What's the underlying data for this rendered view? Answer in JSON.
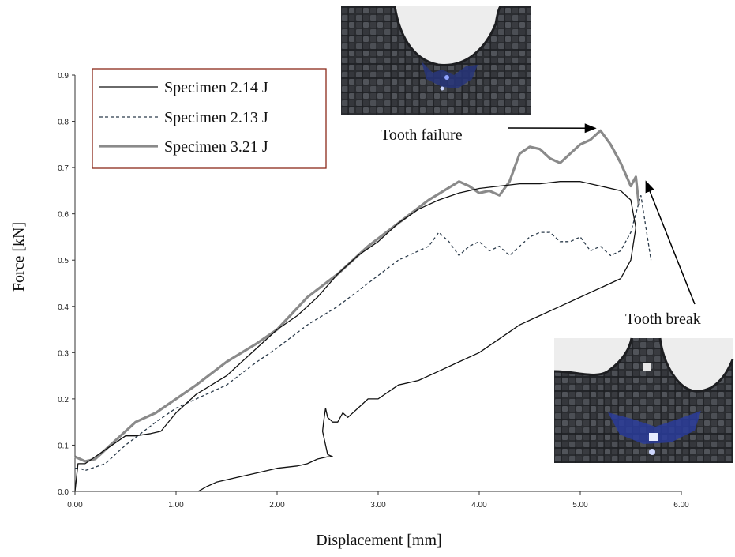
{
  "chart_data": {
    "type": "line",
    "xlabel": "Displacement [mm]",
    "ylabel": "Force [kN]",
    "xlim": [
      0,
      6
    ],
    "ylim": [
      0,
      0.9
    ],
    "x_ticks": [
      "0.00",
      "1.00",
      "2.00",
      "3.00",
      "4.00",
      "5.00",
      "6.00"
    ],
    "y_ticks": [
      "0.0",
      "0.1",
      "0.2",
      "0.3",
      "0.4",
      "0.5",
      "0.6",
      "0.7",
      "0.8",
      "0.9"
    ],
    "grid": false,
    "legend_position": "top-left",
    "series": [
      {
        "name": "Specimen 2.14 J",
        "style": "solid-thin",
        "color": "#111111",
        "x": [
          0.0,
          0.03,
          0.1,
          0.3,
          0.5,
          0.6,
          0.75,
          0.85,
          1.0,
          1.2,
          1.5,
          1.8,
          2.0,
          2.2,
          2.4,
          2.6,
          2.8,
          3.0,
          3.2,
          3.4,
          3.6,
          3.8,
          4.0,
          4.2,
          4.4,
          4.6,
          4.8,
          5.0,
          5.2,
          5.4,
          5.5,
          5.55,
          5.5,
          5.45,
          5.4,
          5.3,
          5.2,
          5.1,
          5.0,
          4.8,
          4.6,
          4.4,
          4.2,
          4.0,
          3.8,
          3.6,
          3.4,
          3.2,
          3.0,
          2.9,
          2.8,
          2.7,
          2.65,
          2.6,
          2.55,
          2.5,
          2.48,
          2.46,
          2.45,
          2.5,
          2.55,
          2.5,
          2.4,
          2.3,
          2.2,
          2.0,
          1.8,
          1.6,
          1.4,
          1.3,
          1.22
        ],
        "y": [
          0.0,
          0.06,
          0.06,
          0.09,
          0.12,
          0.12,
          0.125,
          0.13,
          0.17,
          0.21,
          0.25,
          0.31,
          0.35,
          0.38,
          0.42,
          0.47,
          0.51,
          0.54,
          0.58,
          0.61,
          0.63,
          0.645,
          0.655,
          0.66,
          0.665,
          0.665,
          0.67,
          0.67,
          0.66,
          0.65,
          0.63,
          0.57,
          0.5,
          0.48,
          0.46,
          0.45,
          0.44,
          0.43,
          0.42,
          0.4,
          0.38,
          0.36,
          0.33,
          0.3,
          0.28,
          0.26,
          0.24,
          0.23,
          0.2,
          0.2,
          0.18,
          0.16,
          0.17,
          0.15,
          0.15,
          0.16,
          0.18,
          0.15,
          0.13,
          0.08,
          0.075,
          0.075,
          0.07,
          0.06,
          0.055,
          0.05,
          0.04,
          0.03,
          0.02,
          0.01,
          0.0
        ]
      },
      {
        "name": "Specimen 2.13 J",
        "style": "dashed",
        "color": "#2a3a4a",
        "x": [
          0.0,
          0.05,
          0.1,
          0.3,
          0.5,
          0.8,
          1.0,
          1.2,
          1.5,
          1.8,
          2.0,
          2.3,
          2.6,
          2.9,
          3.2,
          3.5,
          3.6,
          3.7,
          3.8,
          3.9,
          4.0,
          4.1,
          4.2,
          4.3,
          4.4,
          4.5,
          4.6,
          4.7,
          4.8,
          4.9,
          5.0,
          5.1,
          5.2,
          5.3,
          5.4,
          5.5,
          5.6,
          5.65,
          5.7
        ],
        "y": [
          0.05,
          0.05,
          0.045,
          0.06,
          0.1,
          0.15,
          0.18,
          0.2,
          0.23,
          0.28,
          0.31,
          0.36,
          0.4,
          0.45,
          0.5,
          0.53,
          0.56,
          0.54,
          0.51,
          0.53,
          0.54,
          0.52,
          0.53,
          0.51,
          0.53,
          0.55,
          0.56,
          0.56,
          0.54,
          0.54,
          0.55,
          0.52,
          0.53,
          0.51,
          0.52,
          0.56,
          0.64,
          0.57,
          0.5
        ]
      },
      {
        "name": "Specimen 3.21 J",
        "style": "solid-thick",
        "color": "#8a8a8a",
        "x": [
          0.0,
          0.05,
          0.1,
          0.2,
          0.4,
          0.6,
          0.8,
          1.0,
          1.2,
          1.5,
          1.8,
          2.0,
          2.3,
          2.6,
          2.9,
          3.2,
          3.5,
          3.8,
          3.9,
          4.0,
          4.1,
          4.2,
          4.3,
          4.4,
          4.5,
          4.6,
          4.7,
          4.8,
          4.9,
          5.0,
          5.1,
          5.2,
          5.3,
          5.4,
          5.5,
          5.55,
          5.58
        ],
        "y": [
          0.075,
          0.07,
          0.065,
          0.07,
          0.11,
          0.15,
          0.17,
          0.2,
          0.23,
          0.28,
          0.32,
          0.35,
          0.42,
          0.47,
          0.53,
          0.58,
          0.63,
          0.67,
          0.66,
          0.645,
          0.65,
          0.64,
          0.67,
          0.73,
          0.745,
          0.74,
          0.72,
          0.71,
          0.73,
          0.75,
          0.76,
          0.78,
          0.75,
          0.71,
          0.66,
          0.68,
          0.62
        ]
      }
    ],
    "annotations": [
      {
        "text": "Tooth failure",
        "arrow_to": [
          5.15,
          0.785
        ]
      },
      {
        "text": "Tooth break",
        "arrow_to": [
          5.65,
          0.67
        ]
      }
    ]
  },
  "photos": [
    {
      "name": "tooth-failure-photo"
    },
    {
      "name": "tooth-break-photo"
    }
  ]
}
